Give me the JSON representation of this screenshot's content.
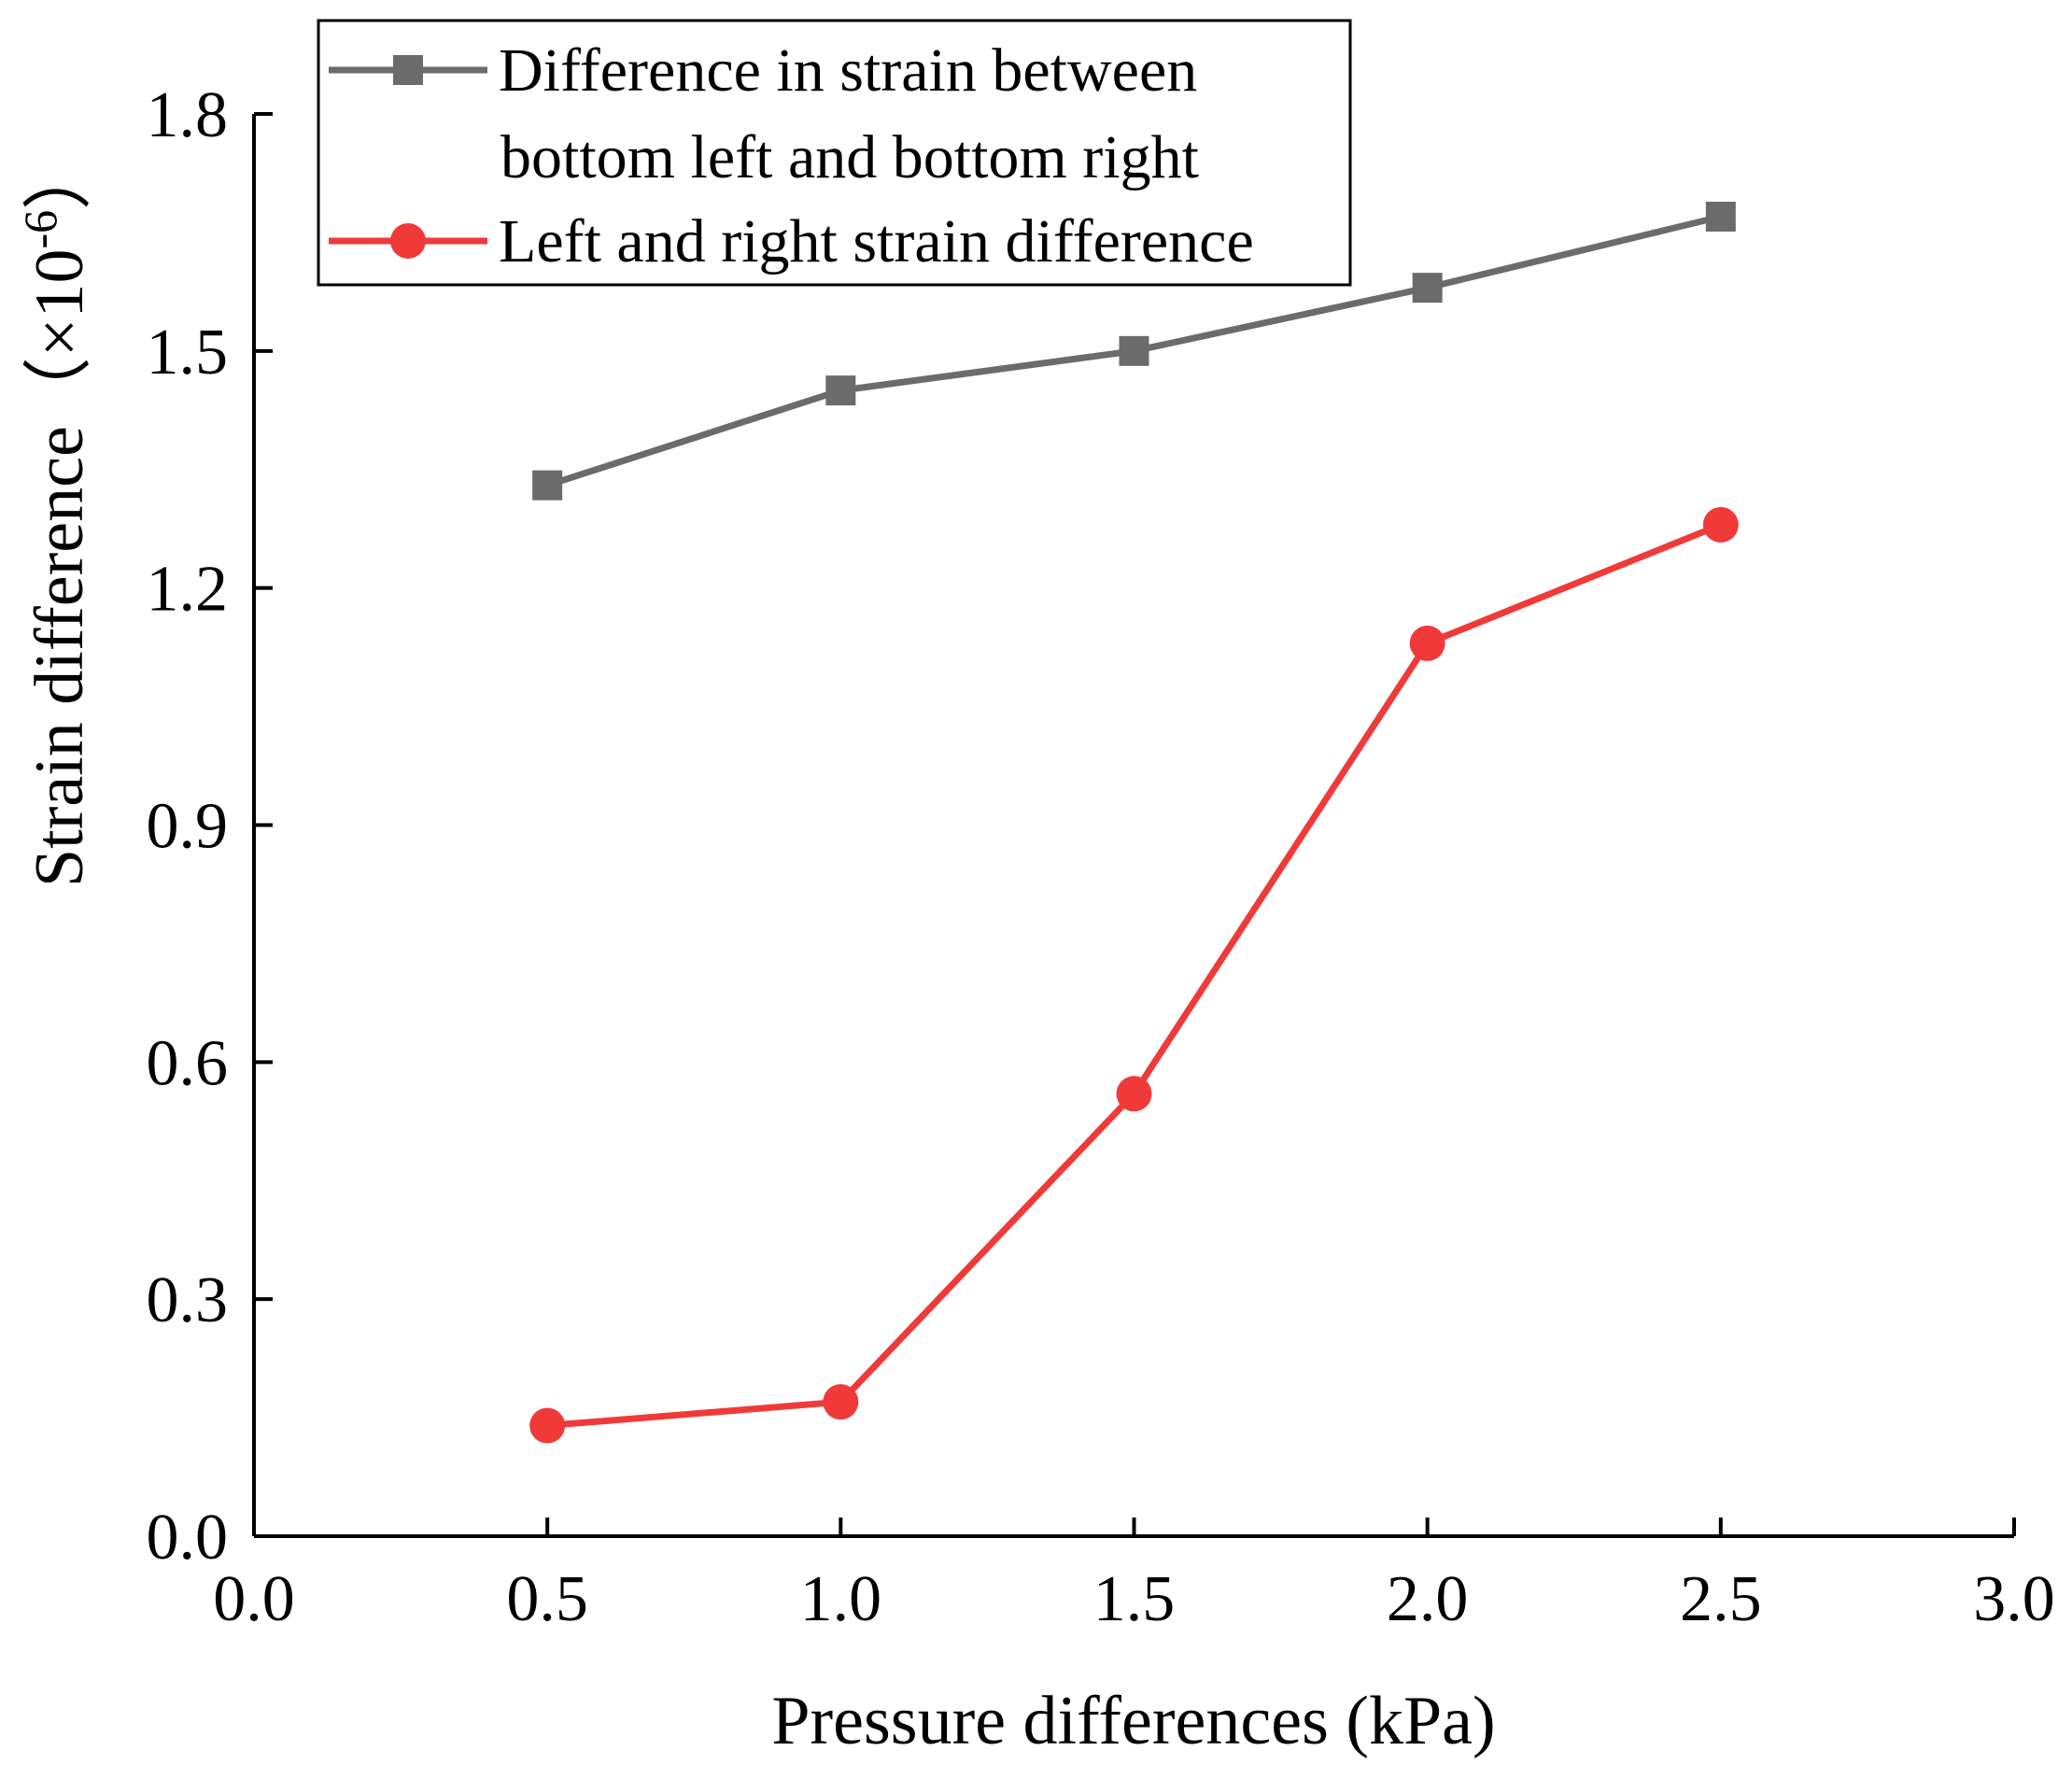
{
  "chart_data": {
    "type": "line",
    "title": "",
    "xlabel": "Pressure differences (kPa)",
    "ylabel": {
      "main": "Strain difference（×10",
      "exponent": "-6",
      "close": "）"
    },
    "xlim": [
      0.0,
      3.0
    ],
    "ylim": [
      0.0,
      1.8
    ],
    "xticks": [
      "0.0",
      "0.5",
      "1.0",
      "1.5",
      "2.0",
      "2.5",
      "3.0"
    ],
    "yticks": [
      "0.0",
      "0.3",
      "0.6",
      "0.9",
      "1.2",
      "1.5",
      "1.8"
    ],
    "grid": false,
    "legend_position": "top-left",
    "x": [
      0.5,
      1.0,
      1.5,
      2.0,
      2.5
    ],
    "series": [
      {
        "name": "Difference in strain between bottom left and bottom right",
        "legend_lines": [
          "Difference in strain between",
          "bottom left and bottom right"
        ],
        "marker": "square",
        "color": "#6b6b6b",
        "values": [
          1.33,
          1.45,
          1.5,
          1.58,
          1.67
        ]
      },
      {
        "name": "Left and right strain difference",
        "legend_lines": [
          "Left and right strain difference"
        ],
        "marker": "circle",
        "color": "#f03a3a",
        "values": [
          0.14,
          0.17,
          0.56,
          1.13,
          1.28
        ]
      }
    ]
  }
}
